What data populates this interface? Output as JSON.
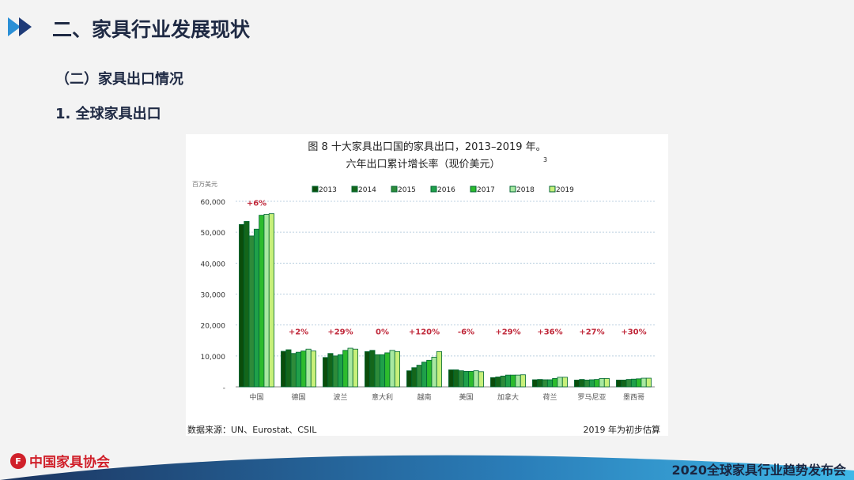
{
  "header": {
    "title": "二、家具行业发展现状",
    "subtitle": "（二）家具出口情况",
    "section": "1. 全球家具出口"
  },
  "footer": {
    "logo_text": "中国家具协会",
    "event": "2020全球家具行业趋势发布会"
  },
  "chart_data": {
    "type": "bar",
    "title": "图 8  十大家具出口国的家具出口，2013–2019 年。",
    "subtitle": "六年出口累计增长率（现价美元）",
    "subtitle_sup": "3",
    "ylabel": "百万美元",
    "ylim": [
      0,
      60000
    ],
    "yticks": [
      "-",
      "10,000",
      "20,000",
      "30,000",
      "40,000",
      "50,000",
      "60,000"
    ],
    "grid": true,
    "legend_placement": "top",
    "categories": [
      "中国",
      "德国",
      "波兰",
      "意大利",
      "越南",
      "美国",
      "加拿大",
      "荷兰",
      "罗马尼亚",
      "墨西哥"
    ],
    "growth_labels": [
      "+6%",
      "+2%",
      "+29%",
      "0%",
      "+120%",
      "-6%",
      "+29%",
      "+36%",
      "+27%",
      "+30%"
    ],
    "series": [
      {
        "name": "2013",
        "color": "#0b4d0b",
        "values": [
          52500,
          11500,
          9500,
          11400,
          5200,
          5500,
          3000,
          2300,
          2200,
          2200
        ]
      },
      {
        "name": "2014",
        "color": "#14661a",
        "values": [
          53500,
          12000,
          10800,
          11800,
          6200,
          5500,
          3200,
          2400,
          2400,
          2200
        ]
      },
      {
        "name": "2015",
        "color": "#2e8b3a",
        "values": [
          48800,
          10800,
          10000,
          10400,
          7000,
          5200,
          3500,
          2300,
          2200,
          2400
        ]
      },
      {
        "name": "2016",
        "color": "#1fa04a",
        "values": [
          51000,
          11200,
          10400,
          10400,
          8000,
          5000,
          3800,
          2300,
          2300,
          2500
        ]
      },
      {
        "name": "2017",
        "color": "#2dbb2d",
        "values": [
          55500,
          11600,
          11800,
          11000,
          8600,
          5000,
          3800,
          2700,
          2400,
          2600
        ]
      },
      {
        "name": "2018",
        "color": "#a8e8a0",
        "values": [
          55800,
          12200,
          12500,
          11800,
          9600,
          5200,
          3800,
          3100,
          2700,
          2800
        ]
      },
      {
        "name": "2019",
        "color": "#c8f07a",
        "values": [
          56000,
          11600,
          12200,
          11400,
          11400,
          4900,
          3900,
          3100,
          2700,
          2800
        ]
      }
    ],
    "source": "数据来源：UN、Eurostat、CSIL",
    "note": "2019 年为初步估算"
  }
}
